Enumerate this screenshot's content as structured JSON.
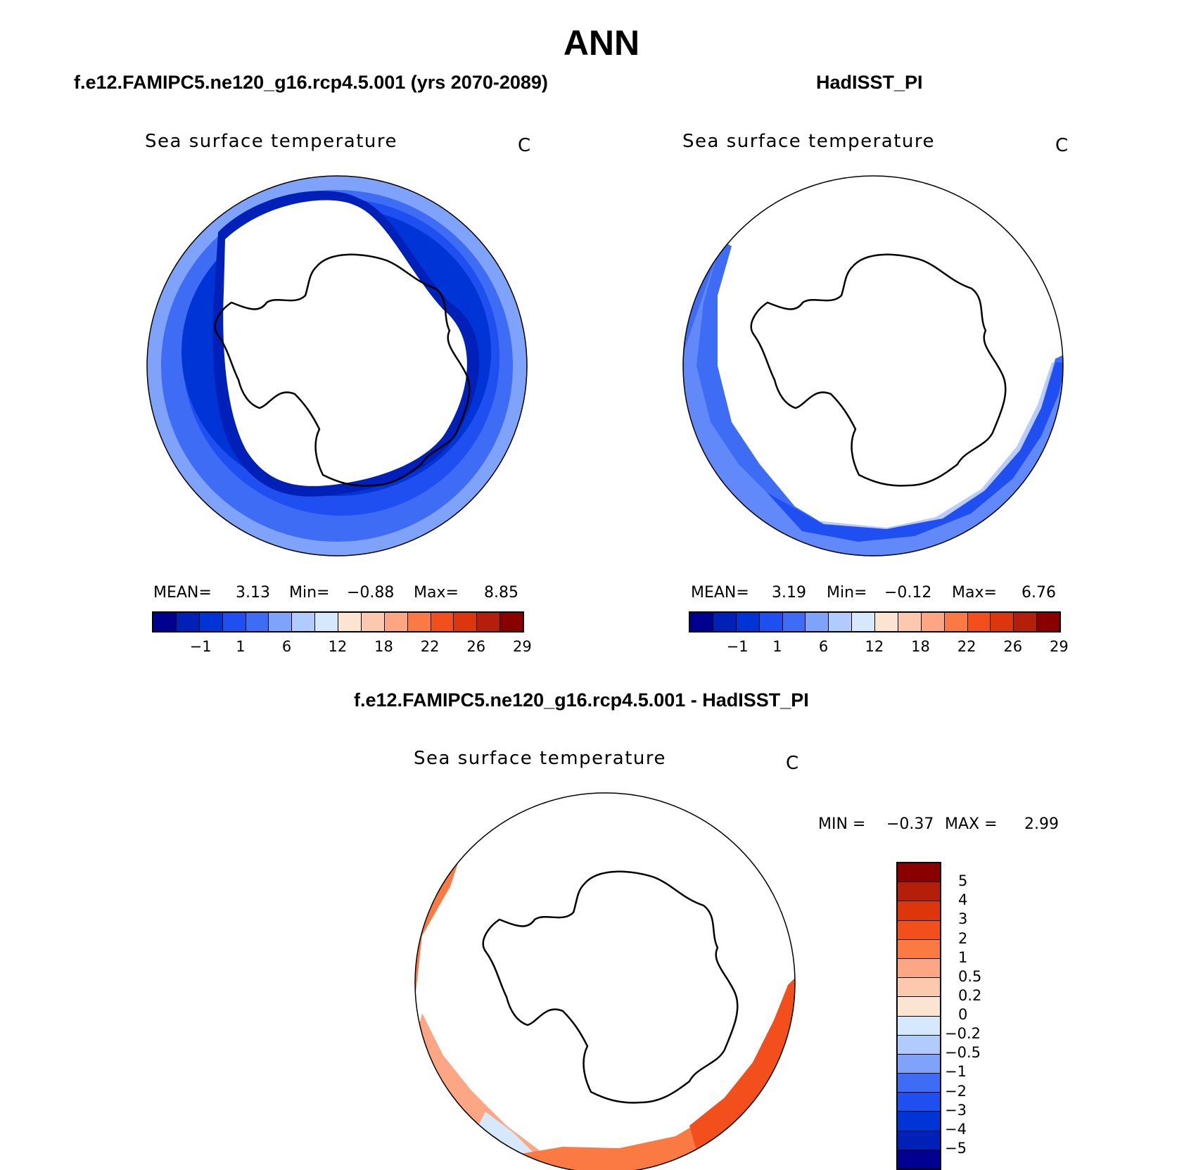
{
  "title": "ANN",
  "panels": {
    "model": {
      "case_title": "f.e12.FAMIPC5.ne120_g16.rcp4.5.001 (yrs 2070-2089)",
      "variable": "Sea surface temperature",
      "units": "C",
      "mean_label": "MEAN=",
      "mean": "3.13",
      "min_label": "Min=",
      "min": "−0.88",
      "max_label": "Max=",
      "max": "8.85"
    },
    "obs": {
      "case_title": "HadISST_PI",
      "variable": "Sea surface temperature",
      "units": "C",
      "mean_label": "MEAN=",
      "mean": "3.19",
      "min_label": "Min=",
      "min": "−0.12",
      "max_label": "Max=",
      "max": "6.76"
    },
    "diff": {
      "case_title": "f.e12.FAMIPC5.ne120_g16.rcp4.5.001 - HadISST_PI",
      "variable": "Sea surface temperature",
      "units": "C",
      "min_label": "MIN =",
      "min": "−0.37",
      "max_label": "MAX =",
      "max": "2.99"
    }
  },
  "colorbar_abs": {
    "colors": [
      "#000090",
      "#0020b8",
      "#0034d6",
      "#1f4ff0",
      "#3f6cf5",
      "#7fa2fb",
      "#b1cbff",
      "#d6e8fb",
      "#fbe5d2",
      "#fcc9af",
      "#fca684",
      "#fb7a43",
      "#f24f1d",
      "#dd360c",
      "#b41e0a",
      "#8a0000"
    ],
    "ticks": [
      "−1",
      "1",
      "6",
      "12",
      "18",
      "22",
      "26",
      "29"
    ]
  },
  "colorbar_diff": {
    "colors": [
      "#8a0000",
      "#b41e0a",
      "#dd360c",
      "#f24f1d",
      "#fb7a43",
      "#fca684",
      "#fcc9af",
      "#fbe5d2",
      "#d6e8fb",
      "#b1cbff",
      "#7fa2fb",
      "#3f6cf5",
      "#1f4ff0",
      "#0034d6",
      "#0020b8",
      "#000090"
    ],
    "ticks": [
      "5",
      "4",
      "3",
      "2",
      "1",
      "0.5",
      "0.2",
      "0",
      "−0.2",
      "−0.5",
      "−1",
      "−2",
      "−3",
      "−4",
      "−5"
    ]
  }
}
